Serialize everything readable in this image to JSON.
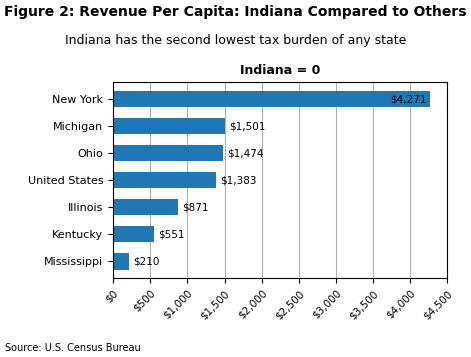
{
  "chart_data": {
    "type": "bar",
    "orientation": "horizontal",
    "title": "Figure 2: Revenue Per Capita: Indiana Compared to Others",
    "subtitle": "Indiana has the second lowest tax burden of any state",
    "annotations": [
      "Indiana = 0",
      "Source: U.S. Census Bureau"
    ],
    "categories": [
      "New York",
      "Michigan",
      "Ohio",
      "United States",
      "Illinois",
      "Kentucky",
      "Mississippi"
    ],
    "values": [
      4271,
      1501,
      1474,
      1383,
      871,
      551,
      210
    ],
    "value_labels": [
      "$4,271",
      "$1,501",
      "$1,474",
      "$1,383",
      "$871",
      "$551",
      "$210"
    ],
    "data_labels": true,
    "xlim": [
      0,
      4500
    ],
    "xticks": [
      {
        "value": 0,
        "label": "$0"
      },
      {
        "value": 500,
        "label": "$500"
      },
      {
        "value": 1000,
        "label": "$1,000"
      },
      {
        "value": 1500,
        "label": "$1,500"
      },
      {
        "value": 2000,
        "label": "$2,000"
      },
      {
        "value": 2500,
        "label": "$2,500"
      },
      {
        "value": 3000,
        "label": "$3,000"
      },
      {
        "value": 3500,
        "label": "$3,500"
      },
      {
        "value": 4000,
        "label": "$4,000"
      },
      {
        "value": 4500,
        "label": "$4,500"
      }
    ],
    "grid": true
  }
}
